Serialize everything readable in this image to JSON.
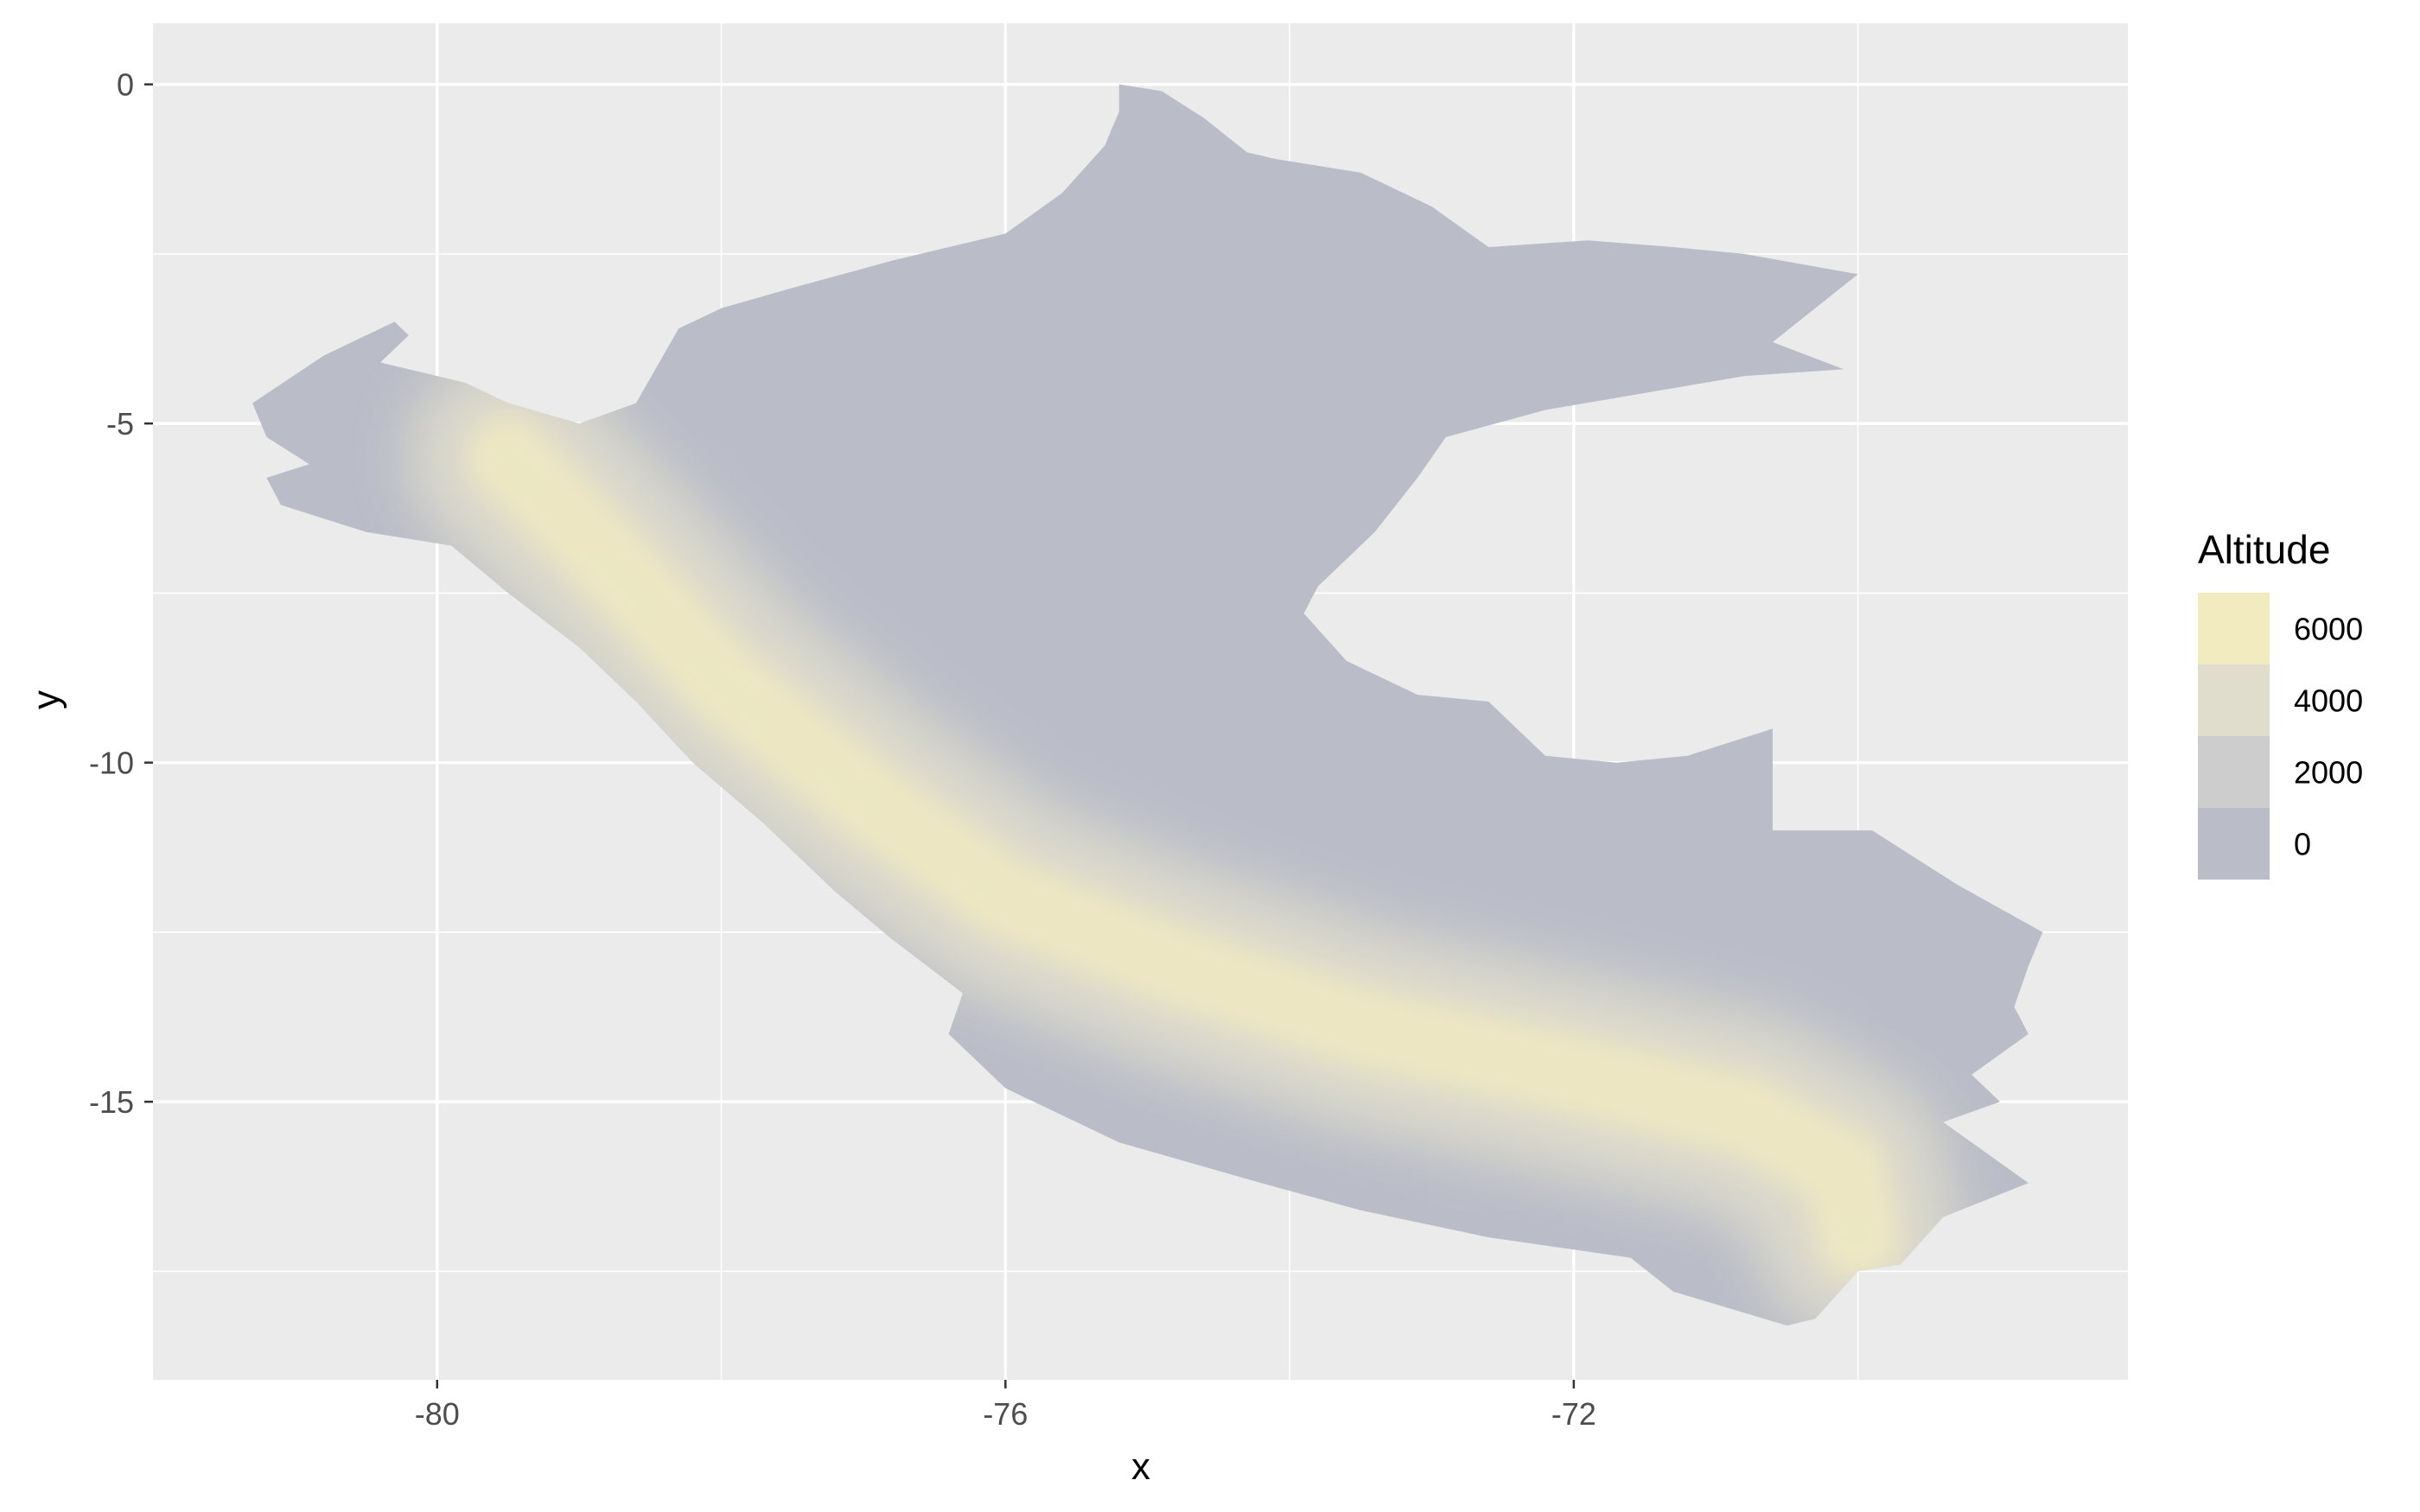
{
  "chart_data": {
    "type": "heatmap",
    "title": "",
    "xlabel": "x",
    "ylabel": "y",
    "xlim": [
      -82,
      -68.1
    ],
    "ylim": [
      -19.1,
      0.9
    ],
    "x_ticks": [
      -80,
      -76,
      -72
    ],
    "x_tick_labels": [
      "-80",
      "-76",
      "-72"
    ],
    "y_ticks": [
      0,
      -5,
      -10,
      -15
    ],
    "y_tick_labels": [
      "0",
      "-5",
      "-10",
      "-15"
    ],
    "grid": true,
    "panel_background": "#ebebeb",
    "legend": {
      "title": "Altitude",
      "placement": "right",
      "breaks": [
        6000,
        4000,
        2000,
        0
      ],
      "labels": [
        "6000",
        "4000",
        "2000",
        "0"
      ],
      "colors": [
        "#f2ebc0",
        "#e0ddcc",
        "#cdcdcd",
        "#babdc8"
      ]
    },
    "region": {
      "name": "",
      "low_color": "#babdc8",
      "high_color": "#f2ebc0",
      "outline_lonlat": [
        [
          -75.2,
          0.0
        ],
        [
          -74.9,
          -0.1
        ],
        [
          -74.6,
          -0.5
        ],
        [
          -74.3,
          -1.0
        ],
        [
          -74.1,
          -1.1
        ],
        [
          -73.5,
          -1.3
        ],
        [
          -73.0,
          -1.8
        ],
        [
          -72.6,
          -2.4
        ],
        [
          -71.9,
          -2.3
        ],
        [
          -71.3,
          -2.4
        ],
        [
          -70.8,
          -2.5
        ],
        [
          -70.0,
          -2.8
        ],
        [
          -70.6,
          -3.8
        ],
        [
          -70.1,
          -4.2
        ],
        [
          -70.8,
          -4.3
        ],
        [
          -72.2,
          -4.8
        ],
        [
          -72.9,
          -5.2
        ],
        [
          -73.1,
          -5.8
        ],
        [
          -73.4,
          -6.6
        ],
        [
          -73.8,
          -7.4
        ],
        [
          -73.9,
          -7.8
        ],
        [
          -73.6,
          -8.5
        ],
        [
          -73.1,
          -9.0
        ],
        [
          -72.6,
          -9.1
        ],
        [
          -72.2,
          -9.9
        ],
        [
          -71.7,
          -10.0
        ],
        [
          -71.2,
          -9.9
        ],
        [
          -70.6,
          -9.5
        ],
        [
          -70.6,
          -11.0
        ],
        [
          -69.9,
          -11.0
        ],
        [
          -69.3,
          -11.8
        ],
        [
          -68.7,
          -12.5
        ],
        [
          -68.8,
          -13.0
        ],
        [
          -68.9,
          -13.6
        ],
        [
          -68.8,
          -14.0
        ],
        [
          -69.2,
          -14.6
        ],
        [
          -69.0,
          -15.0
        ],
        [
          -69.4,
          -15.3
        ],
        [
          -69.0,
          -15.9
        ],
        [
          -68.8,
          -16.2
        ],
        [
          -69.4,
          -16.7
        ],
        [
          -69.7,
          -17.4
        ],
        [
          -70.0,
          -17.5
        ],
        [
          -70.3,
          -18.2
        ],
        [
          -70.5,
          -18.3
        ],
        [
          -71.3,
          -17.8
        ],
        [
          -71.6,
          -17.3
        ],
        [
          -72.6,
          -17.0
        ],
        [
          -73.5,
          -16.6
        ],
        [
          -74.2,
          -16.2
        ],
        [
          -75.2,
          -15.6
        ],
        [
          -76.0,
          -14.8
        ],
        [
          -76.4,
          -14.0
        ],
        [
          -76.3,
          -13.4
        ],
        [
          -76.8,
          -12.6
        ],
        [
          -77.2,
          -11.9
        ],
        [
          -77.7,
          -10.9
        ],
        [
          -78.2,
          -10.0
        ],
        [
          -78.6,
          -9.1
        ],
        [
          -79.0,
          -8.3
        ],
        [
          -79.5,
          -7.5
        ],
        [
          -79.9,
          -6.8
        ],
        [
          -80.5,
          -6.6
        ],
        [
          -81.1,
          -6.2
        ],
        [
          -81.2,
          -5.8
        ],
        [
          -80.9,
          -5.6
        ],
        [
          -81.2,
          -5.2
        ],
        [
          -81.3,
          -4.7
        ],
        [
          -80.8,
          -4.0
        ],
        [
          -80.3,
          -3.5
        ],
        [
          -80.2,
          -3.7
        ],
        [
          -80.4,
          -4.1
        ],
        [
          -79.8,
          -4.4
        ],
        [
          -79.5,
          -4.7
        ],
        [
          -79.0,
          -5.0
        ],
        [
          -78.6,
          -4.7
        ],
        [
          -78.3,
          -3.6
        ],
        [
          -78.0,
          -3.3
        ],
        [
          -77.5,
          -3.0
        ],
        [
          -76.8,
          -2.6
        ],
        [
          -76.0,
          -2.2
        ],
        [
          -75.6,
          -1.6
        ],
        [
          -75.3,
          -0.9
        ],
        [
          -75.2,
          -0.4
        ]
      ],
      "ridge_lonlat": [
        [
          -79.5,
          -5.5
        ],
        [
          -78.8,
          -7.0
        ],
        [
          -78.0,
          -8.8
        ],
        [
          -77.0,
          -10.5
        ],
        [
          -76.0,
          -12.0
        ],
        [
          -74.8,
          -13.0
        ],
        [
          -73.5,
          -13.9
        ],
        [
          -72.0,
          -14.6
        ],
        [
          -70.8,
          -15.2
        ],
        [
          -70.1,
          -16.0
        ],
        [
          -70.0,
          -17.0
        ]
      ]
    }
  }
}
